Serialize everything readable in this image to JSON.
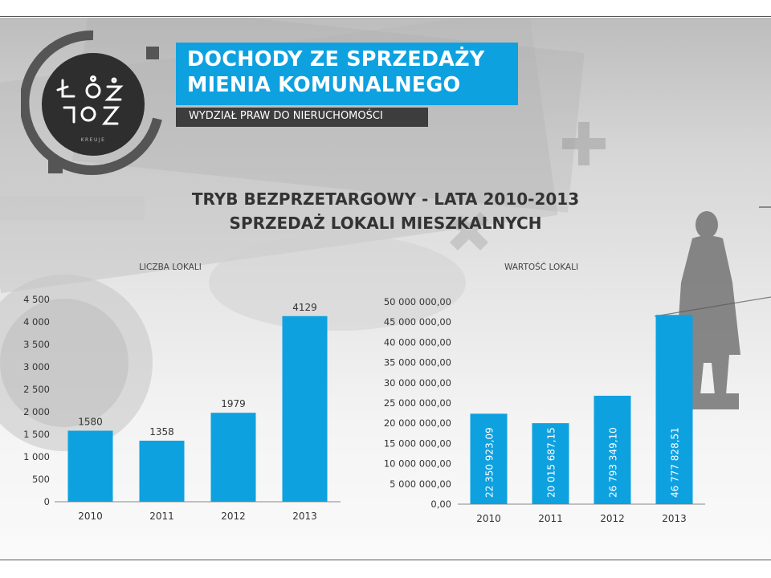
{
  "header": {
    "title_line1": "DOCHODY ZE SPRZEDAŻY",
    "title_line2": "MIENIA KOMUNALNEGO",
    "subtitle": "WYDZIAŁ PRAW DO NIERUCHOMOŚCI",
    "logo_caption": "KREUJE"
  },
  "main_title": {
    "line1": "TRYB BEZPRZETARGOWY - LATA 2010-2013",
    "line2": "SPRZEDAŻ LOKALI MIESZKALNYCH"
  },
  "colors": {
    "accent": "#0ea1e0",
    "bar": "#0ea1e0",
    "dark": "#3d3d3d"
  },
  "chart_data": [
    {
      "type": "bar",
      "title": "LICZBA LOKALI",
      "categories": [
        "2010",
        "2011",
        "2012",
        "2013"
      ],
      "values": [
        1580,
        1358,
        1979,
        4129
      ],
      "value_labels": [
        "1580",
        "1358",
        "1979",
        "4129"
      ],
      "ylim": [
        0,
        4500
      ],
      "y_ticks": [
        0,
        500,
        1000,
        1500,
        2000,
        2500,
        3000,
        3500,
        4000,
        4500
      ],
      "y_tick_labels": [
        "0",
        "500",
        "1 000",
        "1 500",
        "2 000",
        "2 500",
        "3 000",
        "3 500",
        "4 000",
        "4 500"
      ],
      "grid": false,
      "label_position": "above"
    },
    {
      "type": "bar",
      "title": "WARTOŚĆ LOKALI",
      "categories": [
        "2010",
        "2011",
        "2012",
        "2013"
      ],
      "values": [
        22350923.09,
        20015687.15,
        26793349.1,
        46777828.51
      ],
      "value_labels": [
        "22 350 923,09",
        "20 015 687,15",
        "26 793 349,10",
        "46 777 828,51"
      ],
      "ylim": [
        0,
        50000000
      ],
      "y_ticks": [
        0,
        5000000,
        10000000,
        15000000,
        20000000,
        25000000,
        30000000,
        35000000,
        40000000,
        45000000,
        50000000
      ],
      "y_tick_labels": [
        "0,00",
        "5 000 000,00",
        "10 000 000,00",
        "15 000 000,00",
        "20 000 000,00",
        "25 000 000,00",
        "30 000 000,00",
        "35 000 000,00",
        "40 000 000,00",
        "45 000 000,00",
        "50 000 000,00"
      ],
      "grid": false,
      "label_position": "inside-vertical"
    }
  ]
}
